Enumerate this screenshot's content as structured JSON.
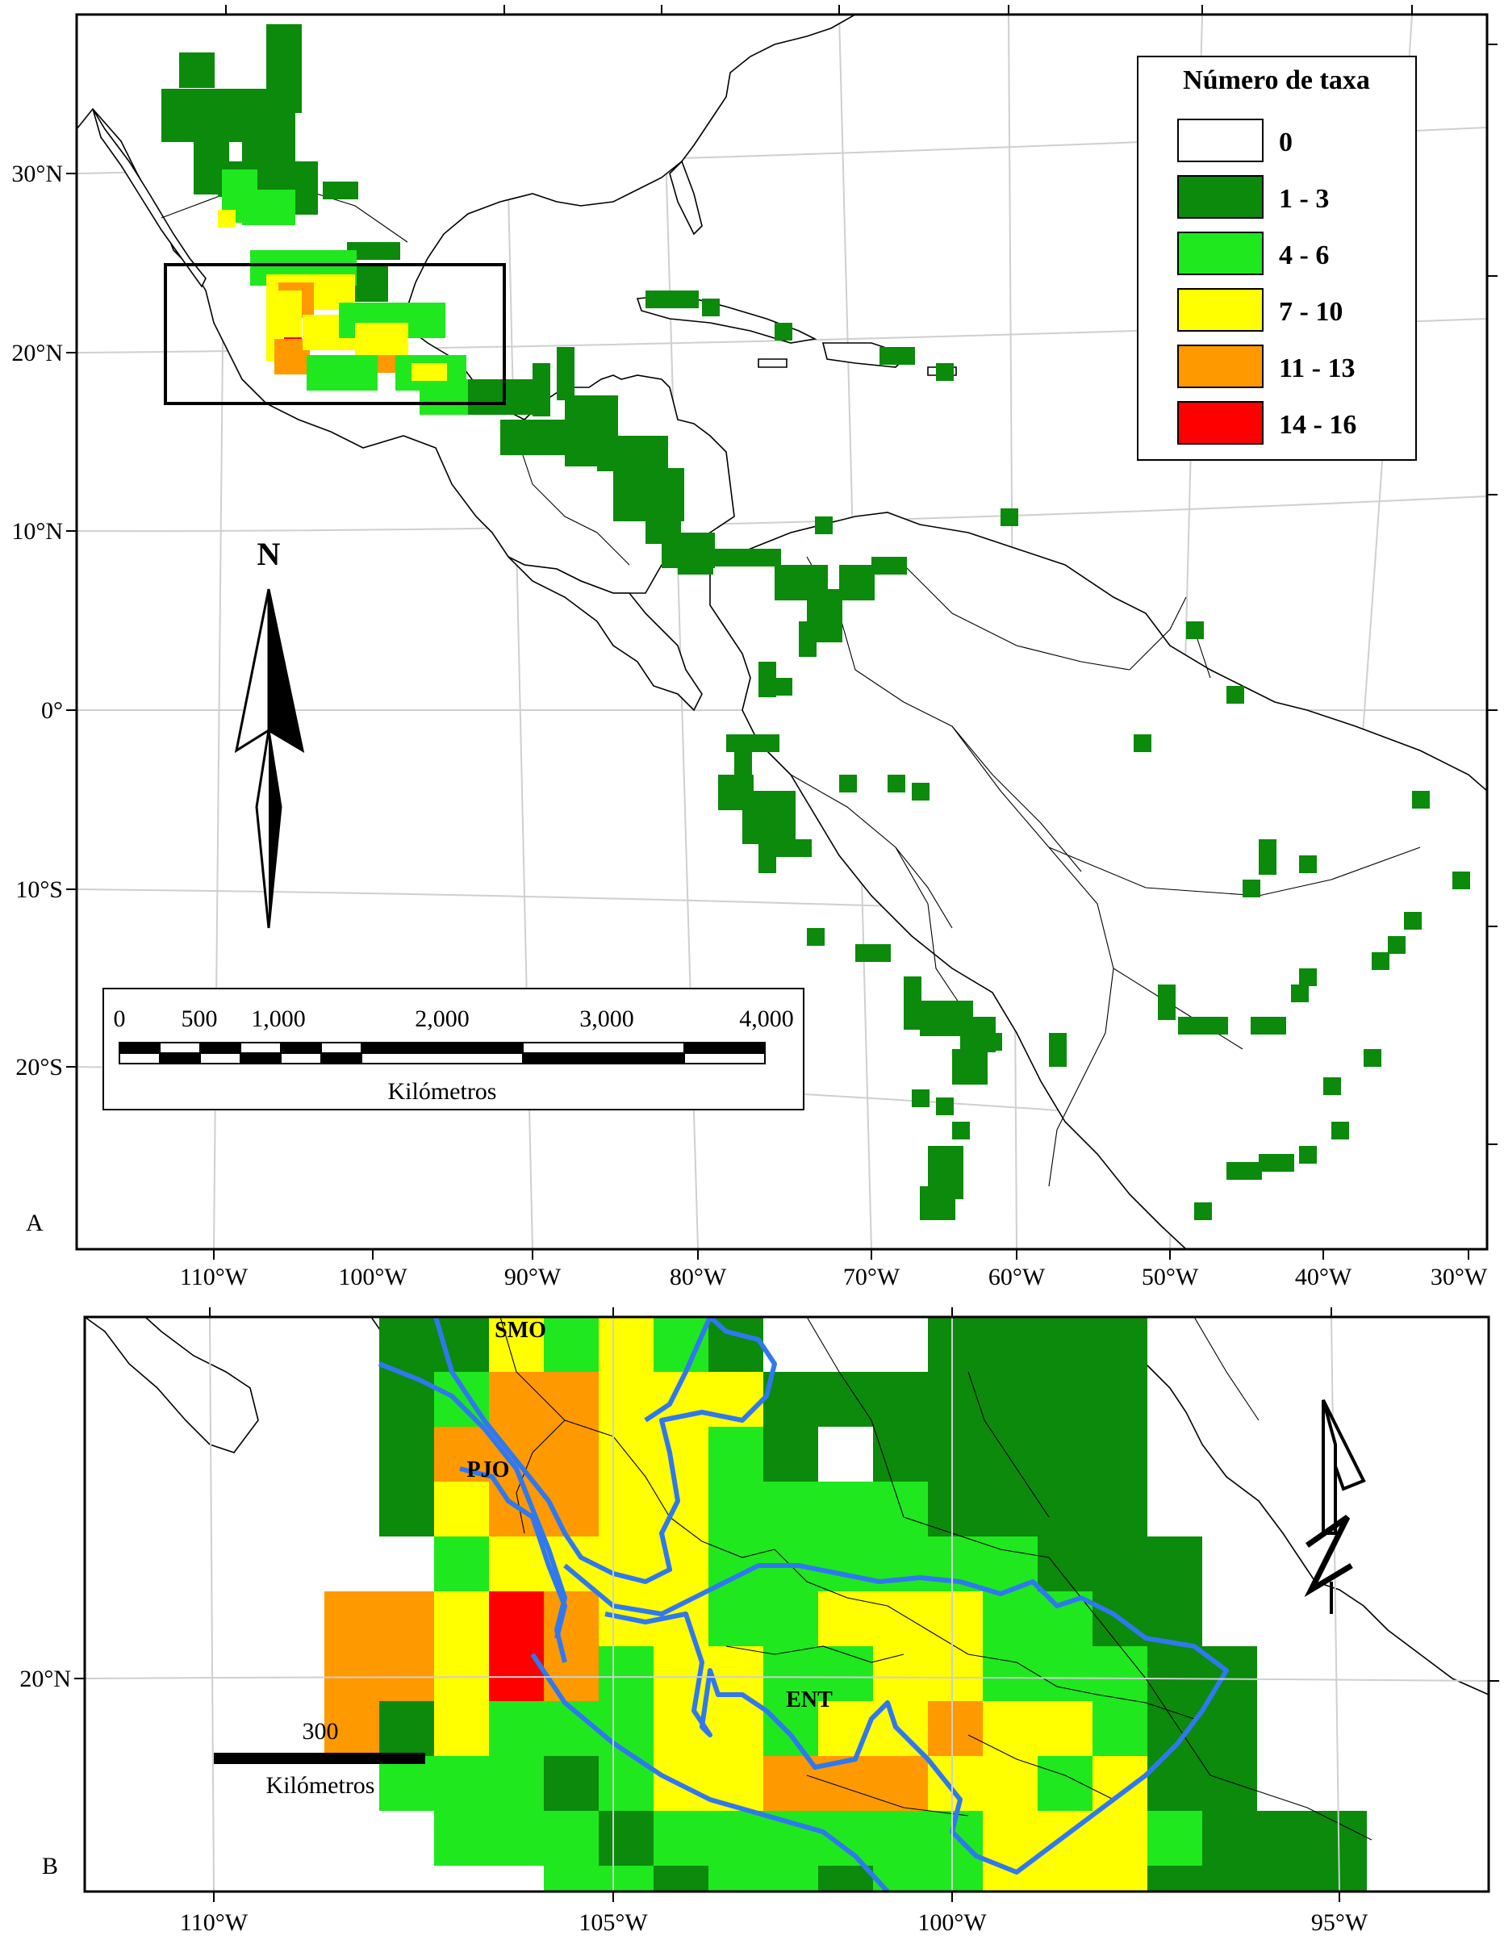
{
  "panel_a": {
    "label": "A",
    "legend": {
      "title": "Número de taxa",
      "classes": [
        {
          "label": "0",
          "color": "#ffffff"
        },
        {
          "label": "1 - 3",
          "color": "#0b8a0b"
        },
        {
          "label": "4 - 6",
          "color": "#1fe81f"
        },
        {
          "label": "7 - 10",
          "color": "#ffff00"
        },
        {
          "label": "11 - 13",
          "color": "#ff9900"
        },
        {
          "label": "14 - 16",
          "color": "#ff0000"
        }
      ]
    },
    "north_label": "N",
    "scalebar": {
      "ticks": [
        "0",
        "500",
        "1,000",
        "2,000",
        "3,000",
        "4,000"
      ],
      "unit": "Kilómetros"
    },
    "lat_labels": [
      "30°N",
      "20°N",
      "10°N",
      "0°",
      "10°S",
      "20°S"
    ],
    "lon_labels": [
      "110°W",
      "100°W",
      "90°W",
      "80°W",
      "70°W",
      "60°W",
      "50°W",
      "40°W",
      "30°W"
    ]
  },
  "panel_b": {
    "label": "B",
    "region_labels": [
      "SMO",
      "PJO",
      "ENT"
    ],
    "scalebar": {
      "value": "300",
      "unit": "Kilómetros"
    },
    "lat_labels": [
      "20°N"
    ],
    "lon_labels": [
      "110°W",
      "105°W",
      "100°W",
      "95°W"
    ]
  }
}
